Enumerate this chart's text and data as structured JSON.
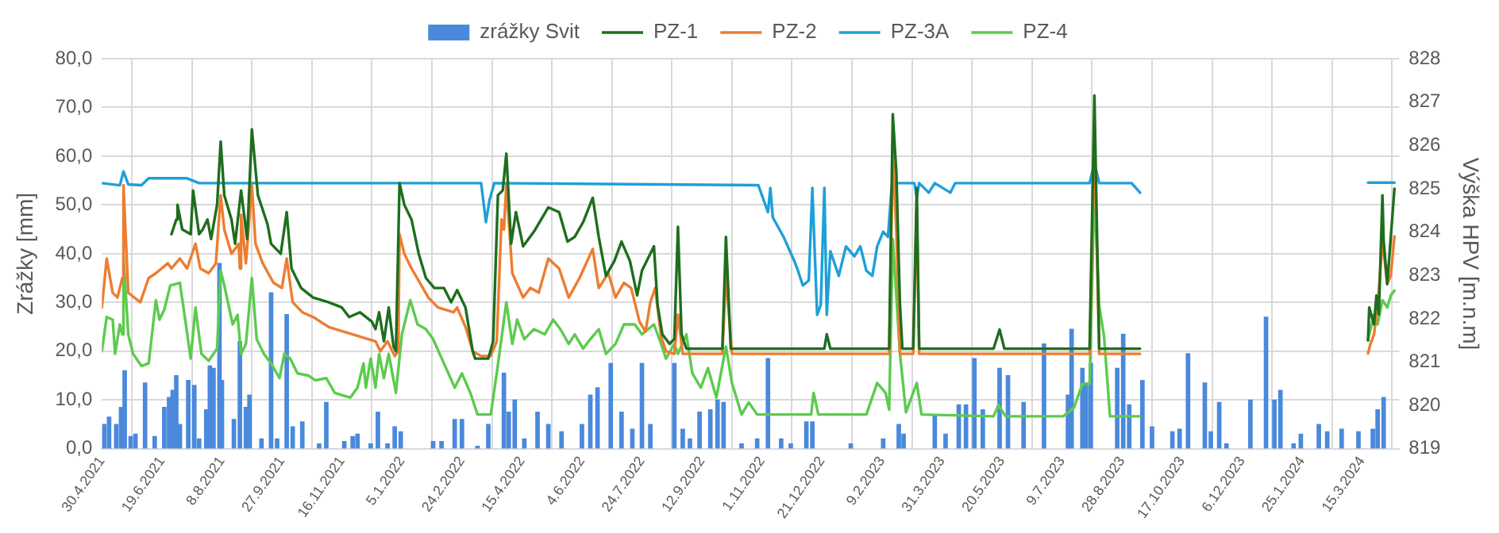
{
  "chart_data": {
    "type": "bar",
    "xlabel": null,
    "ylabel": "Zrážky [mm]",
    "y2label": "Výška HPV [m.n.m]",
    "xlim": [
      "2021-04-30",
      "2024-04-15"
    ],
    "xticks": [
      {
        "value": "2021-04-30",
        "label": "30.4.2021"
      },
      {
        "value": "2021-06-19",
        "label": "19.6.2021"
      },
      {
        "value": "2021-08-08",
        "label": "8.8.2021"
      },
      {
        "value": "2021-09-27",
        "label": "27.9.2021"
      },
      {
        "value": "2021-11-16",
        "label": "16.11.2021"
      },
      {
        "value": "2022-01-05",
        "label": "5.1.2022"
      },
      {
        "value": "2022-02-24",
        "label": "24.2.2022"
      },
      {
        "value": "2022-04-15",
        "label": "15.4.2022"
      },
      {
        "value": "2022-06-04",
        "label": "4.6.2022"
      },
      {
        "value": "2022-07-24",
        "label": "24.7.2022"
      },
      {
        "value": "2022-09-12",
        "label": "12.9.2022"
      },
      {
        "value": "2022-11-01",
        "label": "1.11.2022"
      },
      {
        "value": "2022-12-21",
        "label": "21.12.2022"
      },
      {
        "value": "2023-02-09",
        "label": "9.2.2023"
      },
      {
        "value": "2023-03-31",
        "label": "31.3.2023"
      },
      {
        "value": "2023-05-20",
        "label": "20.5.2023"
      },
      {
        "value": "2023-07-09",
        "label": "9.7.2023"
      },
      {
        "value": "2023-08-28",
        "label": "28.8.2023"
      },
      {
        "value": "2023-10-17",
        "label": "17.10.2023"
      },
      {
        "value": "2023-12-06",
        "label": "6.12.2023"
      },
      {
        "value": "2024-01-25",
        "label": "25.1.2024"
      },
      {
        "value": "2024-03-15",
        "label": "15.3.2024"
      }
    ],
    "ylim": [
      0,
      80
    ],
    "yticks": [
      {
        "value": 0,
        "label": "0,0"
      },
      {
        "value": 10,
        "label": "10,0"
      },
      {
        "value": 20,
        "label": "20,0"
      },
      {
        "value": 30,
        "label": "30,0"
      },
      {
        "value": 40,
        "label": "40,0"
      },
      {
        "value": 50,
        "label": "50,0"
      },
      {
        "value": 60,
        "label": "60,0"
      },
      {
        "value": 70,
        "label": "70,0"
      },
      {
        "value": 80,
        "label": "80,0"
      }
    ],
    "y2lim": [
      819,
      828
    ],
    "y2ticks": [
      819,
      820,
      821,
      822,
      823,
      824,
      825,
      826,
      827,
      828
    ],
    "grid": true,
    "legend": "top",
    "series": [
      {
        "name": "zrážky Svit",
        "color": "#4a89dc",
        "x": [
          "2021-05-02",
          "2021-05-06",
          "2021-05-12",
          "2021-05-16",
          "2021-05-19",
          "2021-05-24",
          "2021-05-28",
          "2021-06-05",
          "2021-06-13",
          "2021-06-21",
          "2021-06-25",
          "2021-06-28",
          "2021-07-01",
          "2021-07-04",
          "2021-07-11",
          "2021-07-16",
          "2021-07-20",
          "2021-07-26",
          "2021-07-29",
          "2021-08-01",
          "2021-08-06",
          "2021-08-08",
          "2021-08-18",
          "2021-08-23",
          "2021-08-28",
          "2021-08-31",
          "2021-09-10",
          "2021-09-18",
          "2021-09-23",
          "2021-10-01",
          "2021-10-06",
          "2021-10-14",
          "2021-10-28",
          "2021-11-03",
          "2021-11-18",
          "2021-11-25",
          "2021-11-29",
          "2021-12-10",
          "2021-12-16",
          "2021-12-24",
          "2021-12-30",
          "2022-01-04",
          "2022-01-31",
          "2022-02-07",
          "2022-02-18",
          "2022-02-24",
          "2022-03-09",
          "2022-03-18",
          "2022-03-31",
          "2022-04-04",
          "2022-04-09",
          "2022-04-17",
          "2022-04-28",
          "2022-05-07",
          "2022-05-18",
          "2022-06-04",
          "2022-06-11",
          "2022-06-17",
          "2022-06-28",
          "2022-07-07",
          "2022-07-16",
          "2022-07-24",
          "2022-07-31",
          "2022-08-20",
          "2022-08-27",
          "2022-09-02",
          "2022-09-10",
          "2022-09-19",
          "2022-09-25",
          "2022-09-30",
          "2022-10-15",
          "2022-10-28",
          "2022-11-06",
          "2022-11-17",
          "2022-11-25",
          "2022-12-08",
          "2022-12-13",
          "2023-01-14",
          "2023-02-10",
          "2023-02-23",
          "2023-02-27",
          "2023-03-25",
          "2023-04-03",
          "2023-04-14",
          "2023-04-20",
          "2023-04-27",
          "2023-05-04",
          "2023-05-18",
          "2023-05-25",
          "2023-06-07",
          "2023-06-24",
          "2023-07-14",
          "2023-07-17",
          "2023-07-26",
          "2023-07-29",
          "2023-08-02",
          "2023-08-24",
          "2023-08-29",
          "2023-09-03",
          "2023-09-14",
          "2023-09-22",
          "2023-10-09",
          "2023-10-15",
          "2023-10-22",
          "2023-11-05",
          "2023-11-10",
          "2023-11-17",
          "2023-11-23",
          "2023-12-13",
          "2023-12-26",
          "2024-01-02",
          "2024-01-07",
          "2024-01-18",
          "2024-01-24",
          "2024-02-08",
          "2024-02-15",
          "2024-02-27",
          "2024-03-12",
          "2024-03-24",
          "2024-03-28",
          "2024-04-02"
        ],
        "values": [
          5,
          6.5,
          5,
          8.5,
          16,
          2.5,
          3,
          13.5,
          2.5,
          8.5,
          10.5,
          12,
          15,
          5,
          14,
          13,
          2,
          8,
          17,
          16.5,
          38,
          14,
          6,
          22,
          8.5,
          11,
          2,
          32,
          2,
          27.5,
          4.5,
          5.5,
          1,
          9.5,
          1.5,
          2.5,
          3,
          1,
          7.5,
          1,
          4.5,
          3.5,
          1.5,
          1.5,
          6,
          6,
          0.5,
          5,
          15.5,
          7.5,
          10,
          2,
          7.5,
          5,
          3.5,
          5,
          11,
          12.5,
          17.5,
          7.5,
          4,
          17.5,
          5,
          17.5,
          4,
          2,
          7.5,
          8,
          10,
          9.5,
          1,
          2,
          18.5,
          2,
          1,
          5.5,
          5.5,
          1,
          2,
          5,
          3,
          7,
          3,
          9,
          9,
          18.5,
          8,
          16.5,
          15,
          9.5,
          21.5,
          11,
          24.5,
          16.5,
          13.5,
          17.5,
          16.5,
          23.5,
          9,
          14,
          4.5,
          3.5,
          4,
          19.5,
          13.5,
          3.5,
          9.5,
          1,
          10,
          27,
          10,
          12,
          1,
          3,
          5,
          3.5,
          4,
          3.5,
          4,
          8,
          10.5
        ]
      },
      {
        "name": "PZ-1",
        "type": "line",
        "axis": "y2",
        "color": "#1e6e1e",
        "x": [
          "2021-06-27",
          "2021-07-01",
          "2021-07-02",
          "2021-07-06",
          "2021-07-13",
          "2021-07-15",
          "2021-07-20",
          "2021-07-23",
          "2021-07-27",
          "2021-07-30",
          "2021-08-04",
          "2021-08-07",
          "2021-08-10",
          "2021-08-16",
          "2021-08-19",
          "2021-08-24",
          "2021-08-29",
          "2021-09-02",
          "2021-09-07",
          "2021-09-15",
          "2021-09-18",
          "2021-09-26",
          "2021-10-01",
          "2021-10-05",
          "2021-10-13",
          "2021-10-23",
          "2021-11-05",
          "2021-11-16",
          "2021-11-22",
          "2021-12-01",
          "2021-12-11",
          "2021-12-14",
          "2021-12-17",
          "2021-12-21",
          "2021-12-25",
          "2021-12-29",
          "2021-12-31",
          "2022-01-03",
          "2022-01-07",
          "2022-01-13",
          "2022-01-19",
          "2022-01-25",
          "2022-02-01",
          "2022-02-09",
          "2022-02-15",
          "2022-02-20",
          "2022-02-27",
          "2022-03-05",
          "2022-03-07",
          "2022-03-18",
          "2022-03-22",
          "2022-03-26",
          "2022-03-30",
          "2022-04-02",
          "2022-04-06",
          "2022-04-10",
          "2022-04-16",
          "2022-04-25",
          "2022-05-07",
          "2022-05-16",
          "2022-05-23",
          "2022-05-29",
          "2022-06-05",
          "2022-06-13",
          "2022-06-18",
          "2022-06-24",
          "2022-07-01",
          "2022-07-07",
          "2022-07-14",
          "2022-07-20",
          "2022-07-24",
          "2022-08-03",
          "2022-08-06",
          "2022-08-10",
          "2022-08-16",
          "2022-08-20",
          "2022-08-23",
          "2022-08-26",
          "2022-08-30",
          "2022-09-29",
          "2022-10-02",
          "2022-10-06",
          "2022-12-23",
          "2022-12-25",
          "2022-12-28",
          "2023-02-15",
          "2023-02-18",
          "2023-02-21",
          "2023-02-24",
          "2023-02-26",
          "2023-03-07",
          "2023-03-10",
          "2023-03-12",
          "2023-05-13",
          "2023-05-18",
          "2023-05-22",
          "2023-08-01",
          "2023-08-05",
          "2023-08-09",
          "2023-09-12",
          "2023-12-01",
          "2024-03-20",
          "2024-03-21",
          "2024-03-25",
          "2024-03-27",
          "2024-03-29",
          "2024-04-01",
          "2024-04-02",
          "2024-04-05",
          "2024-04-08",
          "2024-04-11"
        ],
        "values": [
          823.95,
          824.29,
          824.63,
          824.06,
          823.95,
          824.96,
          823.95,
          824.06,
          824.29,
          823.84,
          824.63,
          826.09,
          824.85,
          824.29,
          823.73,
          824.96,
          823.84,
          826.37,
          824.85,
          824.18,
          823.73,
          823.5,
          824.46,
          823.16,
          822.71,
          822.49,
          822.38,
          822.26,
          822.04,
          822.15,
          821.93,
          821.76,
          822.15,
          821.48,
          822.26,
          821.36,
          821.25,
          825.13,
          824.63,
          824.29,
          823.5,
          822.94,
          822.71,
          822.71,
          822.38,
          822.66,
          822.26,
          821.25,
          821.08,
          821.08,
          821.48,
          824.85,
          824.96,
          825.81,
          823.73,
          824.46,
          823.67,
          824.01,
          824.57,
          824.46,
          823.78,
          823.89,
          824.23,
          824.79,
          823.89,
          822.99,
          823.33,
          823.78,
          823.33,
          822.54,
          823.11,
          823.67,
          822.32,
          821.64,
          821.42,
          821.53,
          824.12,
          821.64,
          821.31,
          821.31,
          823.89,
          821.31,
          821.31,
          821.64,
          821.31,
          821.31,
          826.72,
          825.36,
          822.32,
          821.31,
          821.31,
          825.02,
          821.31,
          821.31,
          821.75,
          821.31,
          821.31,
          827.15,
          821.31,
          821.31,
          null,
          821.5,
          822.26,
          821.87,
          822.54,
          822.1,
          824.85,
          823.8,
          822.8,
          823.9,
          825.0
        ]
      },
      {
        "name": "PZ-2",
        "type": "line",
        "axis": "y2",
        "color": "#ed7d31",
        "x": [
          "2021-04-30",
          "2021-05-04",
          "2021-05-09",
          "2021-05-13",
          "2021-05-17",
          "2021-05-18",
          "2021-05-22",
          "2021-06-01",
          "2021-06-08",
          "2021-06-14",
          "2021-06-24",
          "2021-06-27",
          "2021-07-04",
          "2021-07-10",
          "2021-07-17",
          "2021-07-21",
          "2021-07-28",
          "2021-08-03",
          "2021-08-07",
          "2021-08-10",
          "2021-08-16",
          "2021-08-22",
          "2021-08-23",
          "2021-08-24",
          "2021-08-28",
          "2021-09-02",
          "2021-09-05",
          "2021-09-11",
          "2021-09-20",
          "2021-09-27",
          "2021-10-01",
          "2021-10-06",
          "2021-10-14",
          "2021-10-23",
          "2021-11-05",
          "2021-11-18",
          "2021-12-01",
          "2021-12-14",
          "2021-12-18",
          "2021-12-24",
          "2021-12-30",
          "2022-01-02",
          "2022-01-03",
          "2022-01-07",
          "2022-01-13",
          "2022-01-20",
          "2022-01-27",
          "2022-02-04",
          "2022-02-17",
          "2022-02-20",
          "2022-02-27",
          "2022-03-05",
          "2022-03-12",
          "2022-03-20",
          "2022-03-25",
          "2022-03-29",
          "2022-03-31",
          "2022-04-02",
          "2022-04-07",
          "2022-04-16",
          "2022-04-22",
          "2022-04-29",
          "2022-05-07",
          "2022-05-16",
          "2022-05-24",
          "2022-06-02",
          "2022-06-13",
          "2022-06-18",
          "2022-06-26",
          "2022-07-02",
          "2022-07-09",
          "2022-07-15",
          "2022-07-22",
          "2022-07-27",
          "2022-07-31",
          "2022-08-04",
          "2022-08-09",
          "2022-08-13",
          "2022-08-20",
          "2022-08-23",
          "2022-08-27",
          "2022-09-29",
          "2022-10-02",
          "2022-10-07",
          "2023-02-15",
          "2023-02-18",
          "2023-02-21",
          "2023-02-24",
          "2023-03-07",
          "2023-03-10",
          "2023-03-12",
          "2023-08-01",
          "2023-08-05",
          "2023-08-09",
          "2023-09-12",
          "2023-12-01",
          "2024-03-20",
          "2024-03-22",
          "2024-03-25",
          "2024-03-28",
          "2024-04-01",
          "2024-04-05",
          "2024-04-08",
          "2024-04-11"
        ],
        "values": [
          822.26,
          823.39,
          822.6,
          822.49,
          822.94,
          825.08,
          822.6,
          822.38,
          822.94,
          823.05,
          823.28,
          823.16,
          823.39,
          823.16,
          823.73,
          823.16,
          823.05,
          823.28,
          824.85,
          824.06,
          823.5,
          823.73,
          823.16,
          824.4,
          823.28,
          825.08,
          823.73,
          823.28,
          822.83,
          822.71,
          823.39,
          822.38,
          822.15,
          822.04,
          821.81,
          821.7,
          821.59,
          821.48,
          821.25,
          821.48,
          821.14,
          821.25,
          823.95,
          823.5,
          823.16,
          822.83,
          822.49,
          822.26,
          822.15,
          822.26,
          821.81,
          821.25,
          821.14,
          821.14,
          821.48,
          824.29,
          824.06,
          825.08,
          823.05,
          822.49,
          822.71,
          822.6,
          823.39,
          823.16,
          822.49,
          822.94,
          823.61,
          822.71,
          823.05,
          822.49,
          822.83,
          822.71,
          821.93,
          821.7,
          822.38,
          822.71,
          821.59,
          821.25,
          821.19,
          822.1,
          821.19,
          821.19,
          823.0,
          821.19,
          821.19,
          825.86,
          824.0,
          821.19,
          821.19,
          824.63,
          821.19,
          821.19,
          826.15,
          821.19,
          821.19,
          null,
          821.2,
          821.42,
          821.64,
          822.3,
          823.8,
          822.8,
          823.0,
          823.9
        ]
      },
      {
        "name": "PZ-3A",
        "type": "line",
        "axis": "y2",
        "color": "#1ea0d8",
        "x": [
          "2021-04-30",
          "2021-05-15",
          "2021-05-18",
          "2021-05-22",
          "2021-06-02",
          "2021-06-08",
          "2021-07-10",
          "2021-07-20",
          "2022-03-12",
          "2022-03-16",
          "2022-03-19",
          "2022-03-23",
          "2022-10-29",
          "2022-11-06",
          "2022-11-08",
          "2022-11-10",
          "2022-11-19",
          "2022-11-28",
          "2022-12-01",
          "2022-12-05",
          "2022-12-10",
          "2022-12-13",
          "2022-12-15",
          "2022-12-17",
          "2022-12-20",
          "2022-12-23",
          "2022-12-25",
          "2022-12-28",
          "2023-01-04",
          "2023-01-10",
          "2023-01-17",
          "2023-01-22",
          "2023-01-27",
          "2023-02-01",
          "2023-02-05",
          "2023-02-10",
          "2023-02-14",
          "2023-02-17",
          "2023-02-20",
          "2023-03-08",
          "2023-03-10",
          "2023-03-12",
          "2023-03-20",
          "2023-03-25",
          "2023-04-07",
          "2023-04-11",
          "2023-08-01",
          "2023-08-05",
          "2023-08-09",
          "2023-09-05",
          "2023-09-12",
          "2023-12-01",
          "2024-03-20",
          "2024-04-11"
        ],
        "values": [
          825.13,
          825.08,
          825.4,
          825.1,
          825.08,
          825.24,
          825.24,
          825.13,
          825.13,
          824.23,
          824.74,
          825.13,
          825.08,
          824.46,
          825.02,
          824.34,
          823.89,
          823.33,
          823.11,
          822.77,
          822.88,
          825.02,
          823.5,
          822.09,
          822.32,
          825.02,
          822.09,
          823.56,
          822.99,
          823.67,
          823.44,
          823.67,
          823.11,
          822.99,
          823.67,
          824.01,
          823.89,
          825.02,
          825.13,
          825.13,
          824.79,
          825.13,
          824.91,
          825.13,
          824.91,
          825.13,
          825.13,
          825.6,
          825.13,
          825.13,
          824.91,
          null,
          825.14,
          825.14
        ]
      },
      {
        "name": "PZ-4",
        "type": "line",
        "axis": "y2",
        "color": "#5ccb4e",
        "x": [
          "2021-04-30",
          "2021-05-04",
          "2021-05-09",
          "2021-05-11",
          "2021-05-15",
          "2021-05-17",
          "2021-05-18",
          "2021-05-22",
          "2021-05-26",
          "2021-06-02",
          "2021-06-08",
          "2021-06-14",
          "2021-06-17",
          "2021-06-21",
          "2021-06-26",
          "2021-07-04",
          "2021-07-09",
          "2021-07-13",
          "2021-07-17",
          "2021-07-22",
          "2021-07-28",
          "2021-08-04",
          "2021-08-07",
          "2021-08-10",
          "2021-08-17",
          "2021-08-21",
          "2021-08-24",
          "2021-08-28",
          "2021-09-02",
          "2021-09-06",
          "2021-09-12",
          "2021-09-18",
          "2021-09-25",
          "2021-09-29",
          "2021-10-04",
          "2021-10-10",
          "2021-10-19",
          "2021-10-25",
          "2021-11-03",
          "2021-11-10",
          "2021-11-23",
          "2021-11-29",
          "2021-12-04",
          "2021-12-06",
          "2021-12-10",
          "2021-12-14",
          "2021-12-17",
          "2021-12-21",
          "2021-12-25",
          "2021-12-31",
          "2022-01-05",
          "2022-01-12",
          "2022-01-18",
          "2022-01-25",
          "2022-01-31",
          "2022-02-09",
          "2022-02-18",
          "2022-02-24",
          "2022-03-03",
          "2022-03-09",
          "2022-03-20",
          "2022-03-25",
          "2022-03-30",
          "2022-04-02",
          "2022-04-07",
          "2022-04-11",
          "2022-04-17",
          "2022-04-25",
          "2022-05-04",
          "2022-05-11",
          "2022-05-17",
          "2022-05-24",
          "2022-05-29",
          "2022-06-05",
          "2022-06-11",
          "2022-06-18",
          "2022-06-24",
          "2022-07-02",
          "2022-07-09",
          "2022-07-18",
          "2022-07-24",
          "2022-08-03",
          "2022-08-09",
          "2022-08-13",
          "2022-08-20",
          "2022-08-23",
          "2022-08-30",
          "2022-09-04",
          "2022-09-11",
          "2022-09-17",
          "2022-09-24",
          "2022-10-02",
          "2022-10-07",
          "2022-10-15",
          "2022-10-21",
          "2022-10-28",
          "2022-12-12",
          "2022-12-14",
          "2022-12-18",
          "2023-01-27",
          "2023-02-05",
          "2023-02-12",
          "2023-02-15",
          "2023-02-18",
          "2023-02-24",
          "2023-03-01",
          "2023-03-10",
          "2023-03-14",
          "2023-05-13",
          "2023-05-17",
          "2023-05-23",
          "2023-07-10",
          "2023-07-19",
          "2023-07-26",
          "2023-08-01",
          "2023-08-05",
          "2023-08-09",
          "2023-08-13",
          "2023-08-18",
          "2023-09-12",
          "2023-12-01",
          "2024-03-20",
          "2024-03-22",
          "2024-03-25",
          "2024-03-28",
          "2024-04-01",
          "2024-04-05",
          "2024-04-08",
          "2024-04-11"
        ],
        "values": [
          821.25,
          822.04,
          821.98,
          821.19,
          821.87,
          821.64,
          823.44,
          821.64,
          821.19,
          820.91,
          820.97,
          822.43,
          821.98,
          822.21,
          822.77,
          822.83,
          821.87,
          821.08,
          822.26,
          821.19,
          821.03,
          821.31,
          823.11,
          822.77,
          821.87,
          822.09,
          821.19,
          821.42,
          822.94,
          821.53,
          821.19,
          820.97,
          820.63,
          821.19,
          821.08,
          820.74,
          820.69,
          820.58,
          820.63,
          820.29,
          820.18,
          820.41,
          820.97,
          820.41,
          821.08,
          820.41,
          821.19,
          820.63,
          821.19,
          820.29,
          821.64,
          822.43,
          821.87,
          821.76,
          821.53,
          820.97,
          820.41,
          820.74,
          820.29,
          819.79,
          819.79,
          820.74,
          821.76,
          822.38,
          821.42,
          821.98,
          821.53,
          821.76,
          821.64,
          821.98,
          821.76,
          821.42,
          821.64,
          821.31,
          821.53,
          821.76,
          821.19,
          821.42,
          821.87,
          821.87,
          821.64,
          821.87,
          821.42,
          821.08,
          821.42,
          821.19,
          821.64,
          820.74,
          820.41,
          820.86,
          820.18,
          821.36,
          820.52,
          819.79,
          820.07,
          819.79,
          819.79,
          820.29,
          819.79,
          819.79,
          820.52,
          820.29,
          819.9,
          823.84,
          821.19,
          819.84,
          820.52,
          819.79,
          819.75,
          820.01,
          819.75,
          819.75,
          819.95,
          820.5,
          820.5,
          825.0,
          822.3,
          821.6,
          819.75,
          819.75,
          null,
          821.53,
          821.75,
          822.1,
          821.87,
          822.43,
          822.26,
          822.54,
          822.65
        ]
      }
    ]
  }
}
